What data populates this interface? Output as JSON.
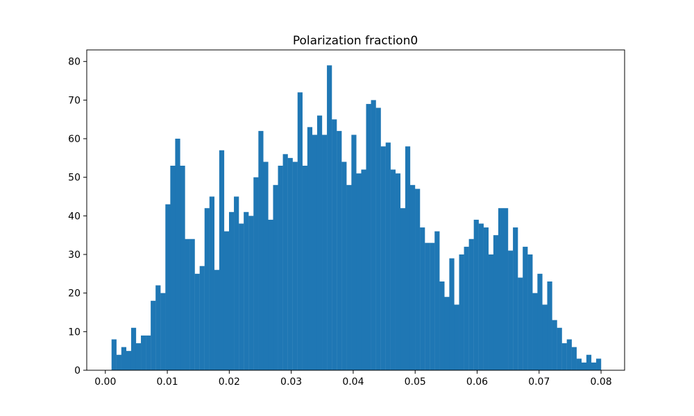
{
  "chart_data": {
    "type": "bar",
    "title": "Polarization fraction0",
    "xlabel": "",
    "ylabel": "",
    "xlim": [
      -0.003,
      0.0838
    ],
    "ylim": [
      0,
      83.0
    ],
    "x_ticks": [
      0.0,
      0.01,
      0.02,
      0.03,
      0.04,
      0.05,
      0.06,
      0.07,
      0.08
    ],
    "x_tick_labels": [
      "0.00",
      "0.01",
      "0.02",
      "0.03",
      "0.04",
      "0.05",
      "0.06",
      "0.07",
      "0.08"
    ],
    "y_ticks": [
      0,
      10,
      20,
      30,
      40,
      50,
      60,
      70,
      80
    ],
    "y_tick_labels": [
      "0",
      "10",
      "20",
      "30",
      "40",
      "50",
      "60",
      "70",
      "80"
    ],
    "bin_start": 0.001,
    "bin_end": 0.08,
    "counts": [
      8,
      4,
      6,
      5,
      11,
      7,
      9,
      9,
      18,
      22,
      20,
      43,
      53,
      60,
      53,
      34,
      34,
      25,
      27,
      42,
      45,
      26,
      57,
      36,
      41,
      45,
      38,
      41,
      40,
      50,
      62,
      54,
      39,
      48,
      53,
      56,
      55,
      54,
      72,
      53,
      63,
      61,
      66,
      61,
      79,
      65,
      62,
      54,
      48,
      61,
      51,
      52,
      69,
      70,
      68,
      58,
      59,
      52,
      51,
      42,
      58,
      48,
      47,
      37,
      33,
      33,
      36,
      23,
      19,
      29,
      17,
      30,
      32,
      34,
      39,
      38,
      37,
      30,
      35,
      42,
      42,
      31,
      37,
      24,
      32,
      30,
      20,
      25,
      17,
      23,
      13,
      11,
      7,
      8,
      6,
      3,
      2,
      4,
      2,
      3
    ],
    "bar_color": "#1f77b4",
    "grid": false,
    "legend": "none"
  }
}
